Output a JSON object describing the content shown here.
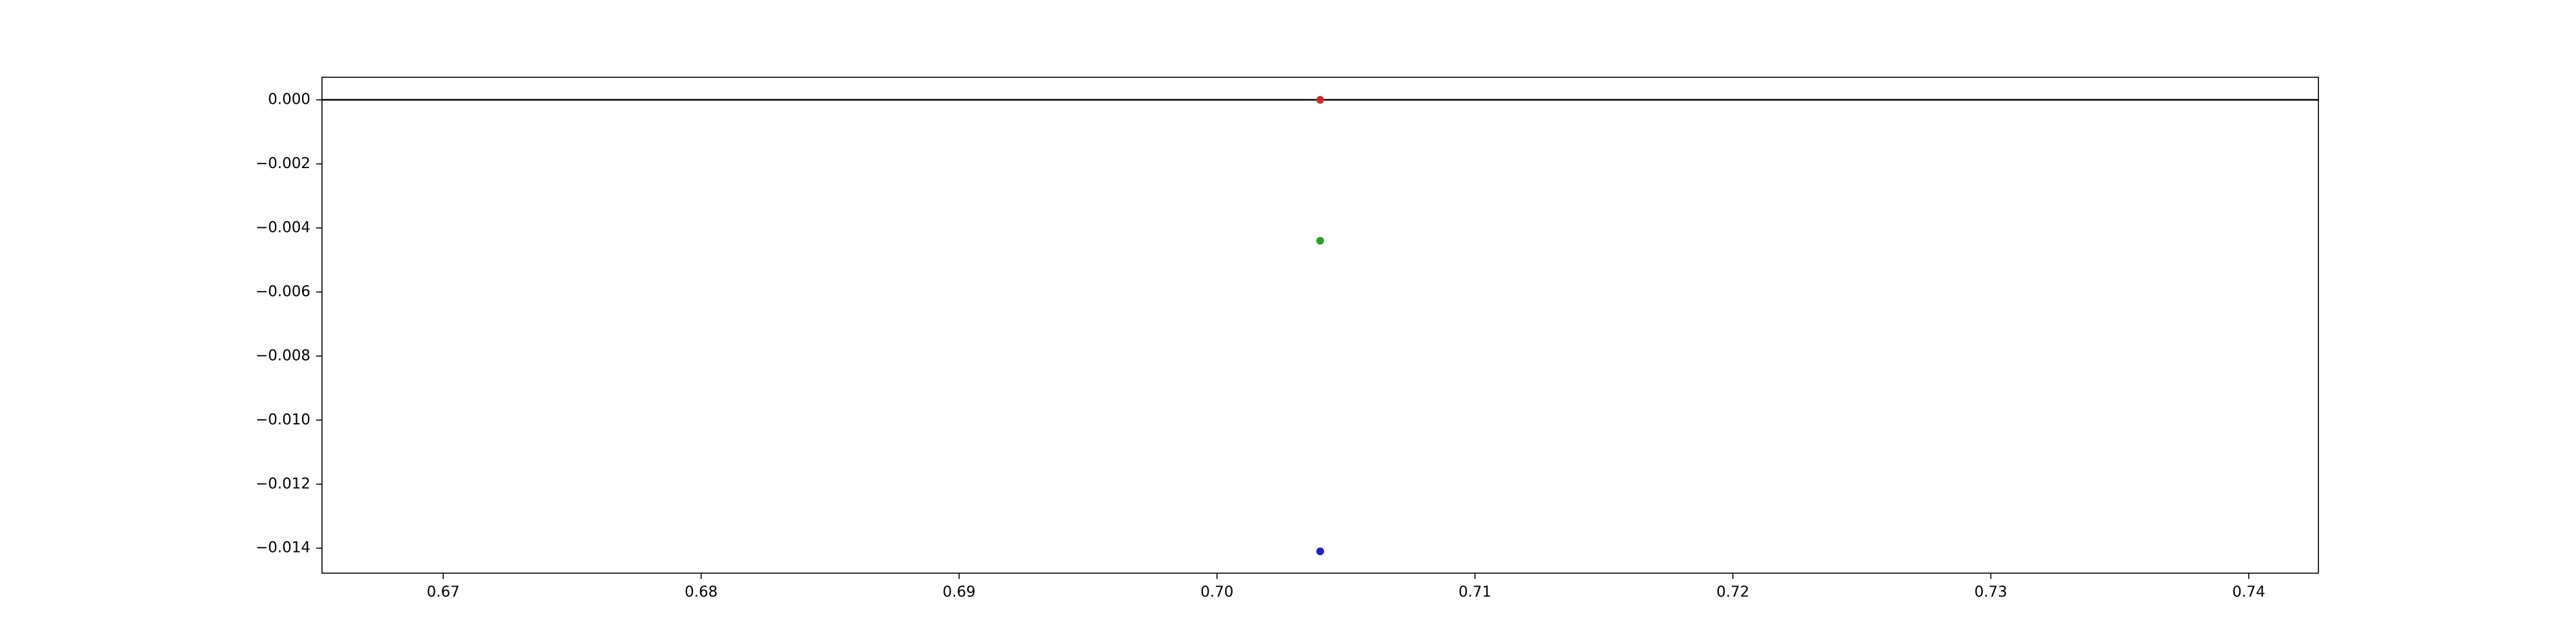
{
  "chart_data": {
    "type": "scatter",
    "title": "",
    "xlabel": "",
    "ylabel": "",
    "xlim": [
      0.6653,
      0.7427
    ],
    "ylim": [
      -0.01478,
      0.000705
    ],
    "grid": false,
    "x_ticks": [
      0.67,
      0.68,
      0.69,
      0.7,
      0.71,
      0.72,
      0.73,
      0.74
    ],
    "x_tick_labels": [
      "0.67",
      "0.68",
      "0.69",
      "0.70",
      "0.71",
      "0.72",
      "0.73",
      "0.74"
    ],
    "y_ticks": [
      0.0,
      -0.002,
      -0.004,
      -0.006,
      -0.008,
      -0.01,
      -0.012,
      -0.014
    ],
    "y_tick_labels": [
      "0.000",
      "−0.002",
      "−0.004",
      "−0.006",
      "−0.008",
      "−0.010",
      "−0.012",
      "−0.014"
    ],
    "hline": {
      "y": 0.0,
      "color": "#000000"
    },
    "points": [
      {
        "x": 0.704,
        "y": 0.0,
        "color": "#d62728"
      },
      {
        "x": 0.704,
        "y": -0.0044,
        "color": "#2ca02c"
      },
      {
        "x": 0.704,
        "y": -0.0141,
        "color": "#1f1fd6"
      }
    ]
  }
}
